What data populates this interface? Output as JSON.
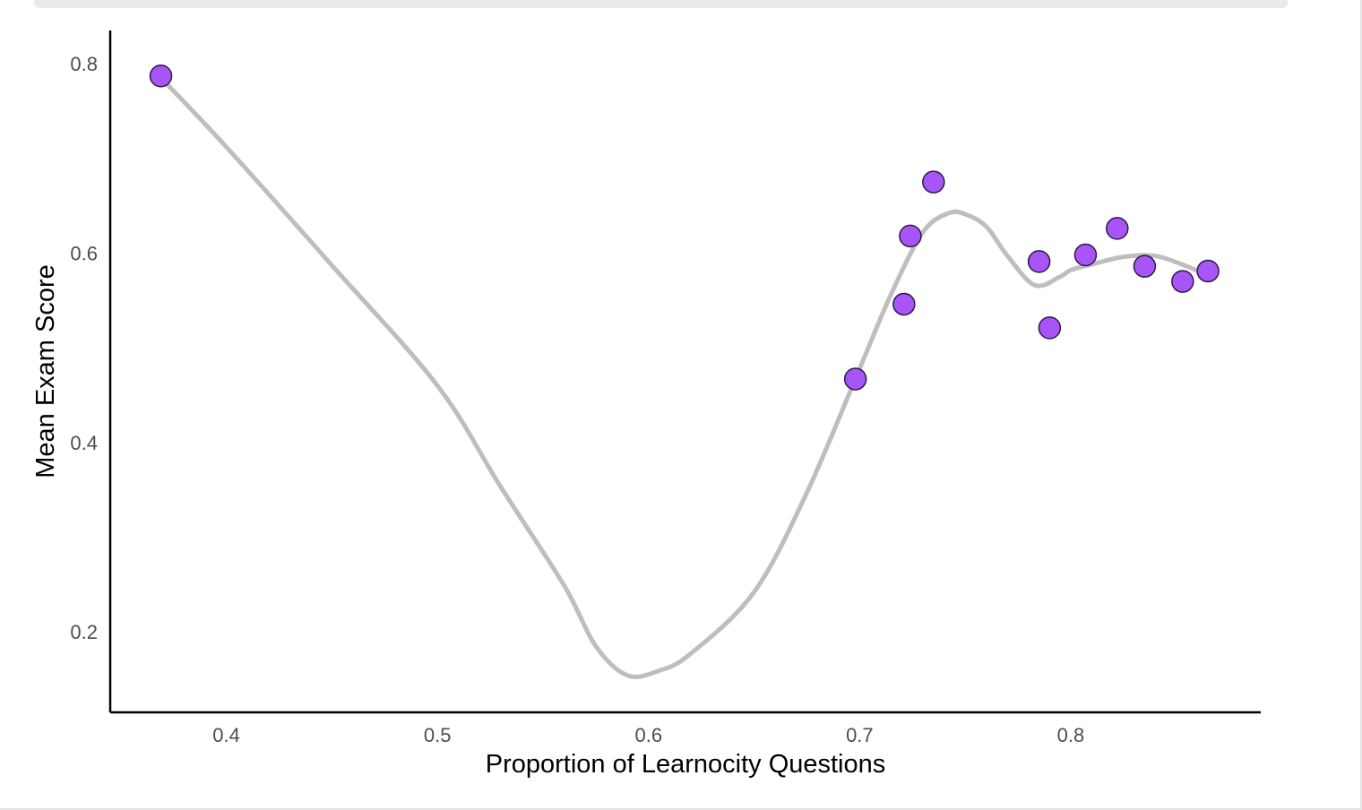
{
  "chart_data": {
    "type": "scatter",
    "title": "",
    "xlabel": "Proportion of Learnocity Questions",
    "ylabel": "Mean Exam Score",
    "xlim": [
      0.345,
      0.89
    ],
    "ylim": [
      0.115,
      0.835
    ],
    "x_ticks": [
      0.4,
      0.5,
      0.6,
      0.7,
      0.8
    ],
    "x_tick_labels": [
      "0.4",
      "0.5",
      "0.6",
      "0.7",
      "0.8"
    ],
    "y_ticks": [
      0.2,
      0.4,
      0.6,
      0.8
    ],
    "y_tick_labels": [
      "0.2",
      "0.4",
      "0.6",
      "0.8"
    ],
    "grid": false,
    "legend": "none",
    "series": [
      {
        "kind": "points",
        "color": "#a855f7",
        "stroke": "#2d1a47",
        "points": [
          {
            "x": 0.369,
            "y": 0.787
          },
          {
            "x": 0.698,
            "y": 0.467
          },
          {
            "x": 0.721,
            "y": 0.546
          },
          {
            "x": 0.724,
            "y": 0.618
          },
          {
            "x": 0.735,
            "y": 0.675
          },
          {
            "x": 0.785,
            "y": 0.591
          },
          {
            "x": 0.79,
            "y": 0.521
          },
          {
            "x": 0.807,
            "y": 0.598
          },
          {
            "x": 0.822,
            "y": 0.626
          },
          {
            "x": 0.835,
            "y": 0.586
          },
          {
            "x": 0.853,
            "y": 0.57
          },
          {
            "x": 0.865,
            "y": 0.581
          }
        ]
      },
      {
        "kind": "smooth",
        "color": "#bebebe",
        "points": [
          {
            "x": 0.369,
            "y": 0.785
          },
          {
            "x": 0.4,
            "y": 0.712
          },
          {
            "x": 0.45,
            "y": 0.587
          },
          {
            "x": 0.5,
            "y": 0.46
          },
          {
            "x": 0.53,
            "y": 0.353
          },
          {
            "x": 0.56,
            "y": 0.249
          },
          {
            "x": 0.575,
            "y": 0.185
          },
          {
            "x": 0.59,
            "y": 0.154
          },
          {
            "x": 0.605,
            "y": 0.159
          },
          {
            "x": 0.62,
            "y": 0.177
          },
          {
            "x": 0.65,
            "y": 0.242
          },
          {
            "x": 0.675,
            "y": 0.347
          },
          {
            "x": 0.7,
            "y": 0.478
          },
          {
            "x": 0.715,
            "y": 0.557
          },
          {
            "x": 0.73,
            "y": 0.622
          },
          {
            "x": 0.742,
            "y": 0.642
          },
          {
            "x": 0.75,
            "y": 0.641
          },
          {
            "x": 0.76,
            "y": 0.628
          },
          {
            "x": 0.77,
            "y": 0.597
          },
          {
            "x": 0.783,
            "y": 0.566
          },
          {
            "x": 0.795,
            "y": 0.575
          },
          {
            "x": 0.8,
            "y": 0.582
          },
          {
            "x": 0.81,
            "y": 0.588
          },
          {
            "x": 0.825,
            "y": 0.596
          },
          {
            "x": 0.84,
            "y": 0.597
          },
          {
            "x": 0.855,
            "y": 0.586
          },
          {
            "x": 0.865,
            "y": 0.576
          }
        ]
      }
    ]
  }
}
